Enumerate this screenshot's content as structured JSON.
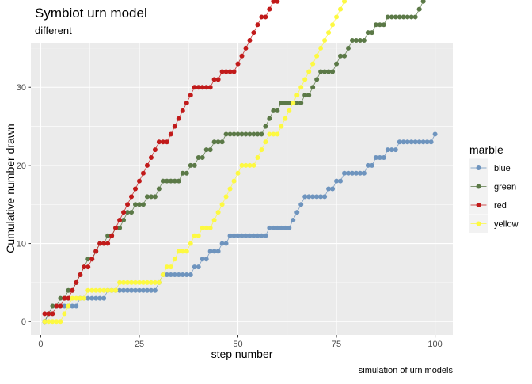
{
  "chart_data": {
    "type": "line",
    "title": "Symbiot urn model",
    "subtitle": "different",
    "xlabel": "step number",
    "ylabel": "Cumulative number drawn",
    "caption": "simulation of urn models",
    "xlim": [
      -2.5,
      104.5
    ],
    "ylim": [
      -1.7,
      35.7
    ],
    "x_ticks": [
      0,
      25,
      50,
      75,
      100
    ],
    "y_ticks": [
      0,
      10,
      20,
      30
    ],
    "x_tick_labels": [
      "0",
      "25",
      "50",
      "75",
      "100"
    ],
    "y_tick_labels": [
      "0",
      "10",
      "20",
      "30"
    ],
    "grid": true,
    "legend": {
      "title": "marble",
      "position": "right"
    },
    "steps": 100,
    "series": [
      {
        "name": "blue",
        "color": "#6E94BE",
        "increments": [
          2,
          3,
          10,
          17,
          30,
          31,
          39,
          41,
          43,
          46,
          48,
          58,
          64,
          65,
          66,
          67,
          73,
          75,
          77,
          83,
          85,
          88,
          91,
          100
        ]
      },
      {
        "name": "green",
        "color": "#5B7947",
        "increments": [
          2,
          3,
          5,
          7,
          9,
          10,
          11,
          12,
          14,
          15,
          17,
          19,
          21,
          22,
          24,
          27,
          30,
          31,
          36,
          38,
          40,
          42,
          44,
          47,
          57,
          58,
          59,
          61,
          67,
          69,
          70,
          71,
          75,
          76,
          78,
          79,
          83,
          85,
          88,
          96,
          97,
          98,
          99
        ]
      },
      {
        "name": "red",
        "color": "#C11A1A",
        "increments": [
          1,
          4,
          6,
          8,
          9,
          10,
          11,
          13,
          14,
          15,
          18,
          19,
          20,
          21,
          22,
          23,
          24,
          25,
          26,
          27,
          28,
          29,
          30,
          33,
          34,
          35,
          36,
          37,
          38,
          39,
          44,
          46,
          50,
          51,
          52,
          53,
          54,
          55,
          56,
          58,
          59,
          61,
          62,
          63,
          64,
          68,
          69,
          70,
          72,
          73,
          74,
          75,
          76,
          77,
          79,
          80,
          81,
          82,
          84,
          85,
          86,
          87,
          88,
          89,
          90,
          91,
          92,
          93,
          94,
          95,
          96,
          97,
          98
        ]
      },
      {
        "name": "yellow",
        "color": "#FDF941",
        "increments": [
          6,
          7,
          8,
          12,
          20,
          31,
          32,
          34,
          35,
          38,
          39,
          41,
          44,
          45,
          46,
          47,
          48,
          49,
          50,
          51,
          55,
          56,
          57,
          58,
          61,
          62,
          63,
          64,
          65,
          66,
          67,
          68,
          69,
          70,
          71,
          72,
          73,
          74,
          75,
          76,
          77,
          78,
          79,
          80,
          81,
          82,
          83,
          84,
          85,
          86,
          87,
          88,
          89,
          90,
          91,
          92,
          93,
          94,
          95,
          96,
          97,
          98,
          99
        ]
      }
    ]
  }
}
